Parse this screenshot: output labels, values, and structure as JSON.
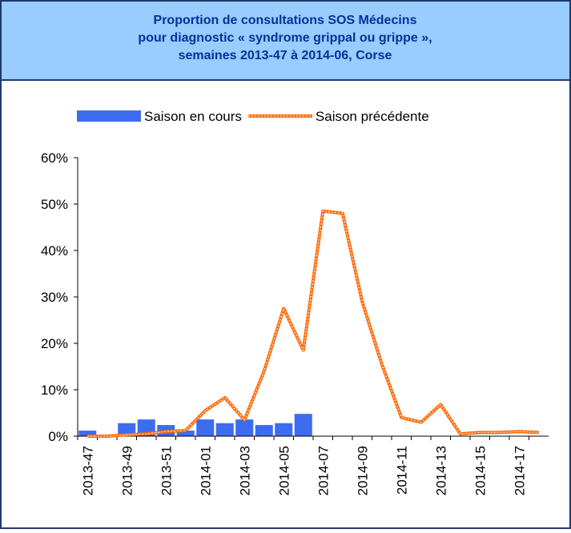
{
  "chart_data": {
    "type": "bar_line",
    "title": [
      "Proportion de consultations SOS Médecins",
      "pour diagnostic « syndrome grippal ou grippe »,",
      "semaines 2013-47 à 2014-06, Corse"
    ],
    "categories": [
      "2013-47",
      null,
      "2013-49",
      null,
      "2013-51",
      null,
      "2014-01",
      null,
      "2014-03",
      null,
      "2014-05",
      null,
      "2014-07",
      null,
      "2014-09",
      null,
      "2014-11",
      null,
      "2014-13",
      null,
      "2014-15",
      null,
      "2014-17",
      null
    ],
    "series": [
      {
        "name": "Saison en cours",
        "type": "bar",
        "color": "#3d6cf0",
        "values": [
          1.2,
          0,
          2.8,
          3.6,
          2.4,
          1.2,
          3.6,
          2.8,
          3.6,
          2.4,
          2.8,
          4.8,
          null,
          null,
          null,
          null,
          null,
          null,
          null,
          null,
          null,
          null,
          null,
          null
        ]
      },
      {
        "name": "Saison précédente",
        "type": "line",
        "color": "#ff6600",
        "values": [
          0,
          0,
          0.3,
          0.5,
          1,
          1.2,
          5.5,
          8.3,
          3.5,
          14,
          27.5,
          18.5,
          48.5,
          48,
          29,
          15.5,
          4,
          3,
          6.8,
          0.5,
          0.8,
          0.8,
          1,
          0.8
        ]
      }
    ],
    "ylim": [
      0,
      60
    ],
    "yticks": [
      {
        "value": 0,
        "label": "0%"
      },
      {
        "value": 10,
        "label": "10%"
      },
      {
        "value": 20,
        "label": "20%"
      },
      {
        "value": 30,
        "label": "30%"
      },
      {
        "value": 40,
        "label": "40%"
      },
      {
        "value": 50,
        "label": "50%"
      },
      {
        "value": 60,
        "label": "60%"
      }
    ],
    "legend": "top"
  }
}
